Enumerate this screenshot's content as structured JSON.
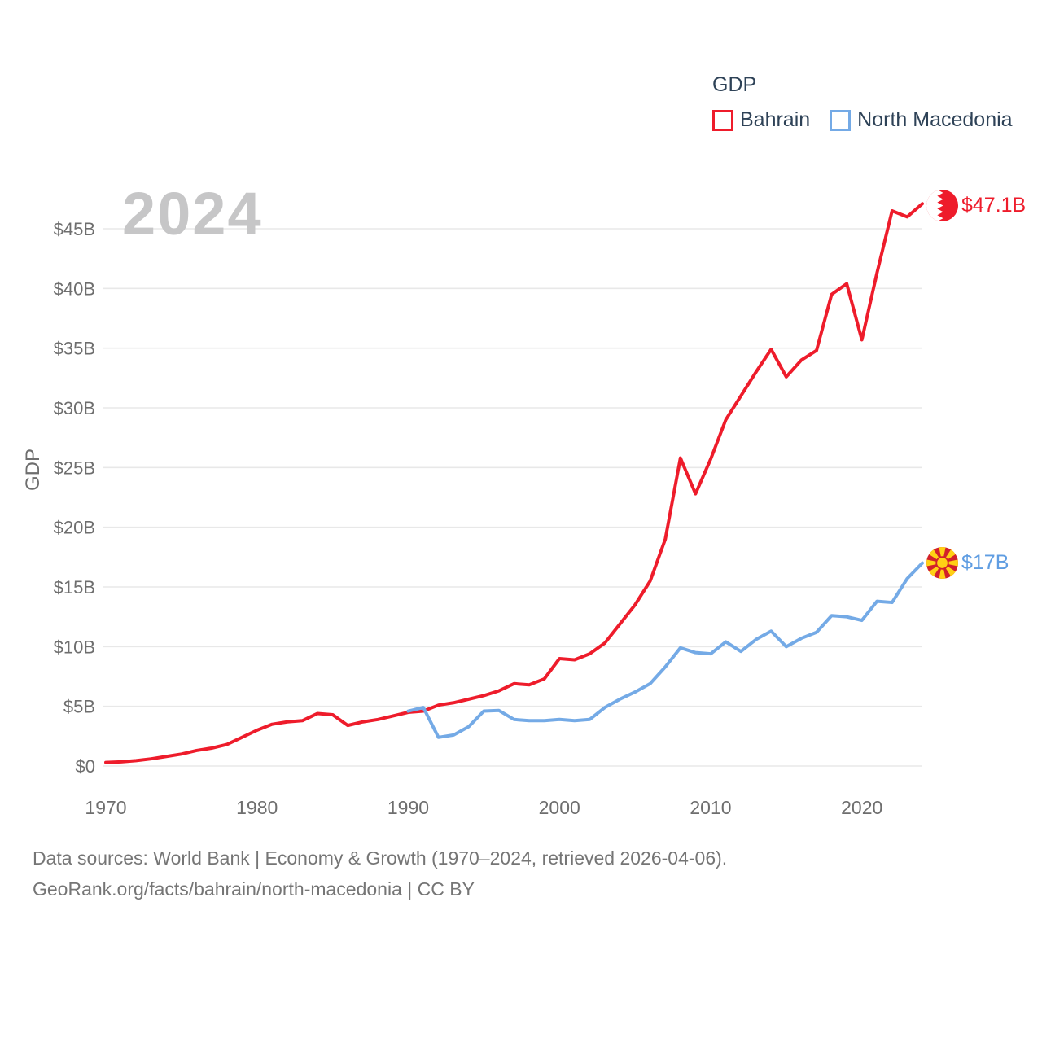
{
  "legend": {
    "title": "GDP",
    "items": [
      {
        "label": "Bahrain",
        "color": "#ee1c2b"
      },
      {
        "label": "North Macedonia",
        "color": "#74aae6"
      }
    ]
  },
  "watermark": "2024",
  "y_axis_title": "GDP",
  "end_labels": [
    {
      "label": "$47.1B",
      "color": "#ee1c2b",
      "flag": "bahrain-flag-icon"
    },
    {
      "label": "$17B",
      "color": "#5f9de2",
      "flag": "north-macedonia-flag-icon"
    }
  ],
  "footer": {
    "line1": "Data sources: World Bank | Economy & Growth (1970–2024, retrieved 2026-04-06).",
    "line2": "GeoRank.org/facts/bahrain/north-macedonia | CC BY"
  },
  "colors": {
    "bahrain": "#ee1c2b",
    "north_macedonia": "#74aae6",
    "grid": "#e8e8e8",
    "axis_text": "#6e6e6e",
    "watermark": "#c6c6c7",
    "legend_text": "#2e4257",
    "footer_text": "#757575"
  },
  "chart_data": {
    "type": "line",
    "title": "GDP",
    "ylabel": "GDP",
    "xlabel": "",
    "grid": "horizontal",
    "legend_position": "top-right",
    "xlim": [
      1970,
      2024
    ],
    "ylim": [
      0,
      48.5
    ],
    "ytick_values": [
      0,
      5,
      10,
      15,
      20,
      25,
      30,
      35,
      40,
      45
    ],
    "ytick_labels": [
      "$0",
      "$5B",
      "$10B",
      "$15B",
      "$20B",
      "$25B",
      "$30B",
      "$35B",
      "$40B",
      "$45B"
    ],
    "xtick_values": [
      1970,
      1980,
      1990,
      2000,
      2010,
      2020
    ],
    "xtick_labels": [
      "1970",
      "1980",
      "1990",
      "2000",
      "2010",
      "2020"
    ],
    "x": [
      1970,
      1971,
      1972,
      1973,
      1974,
      1975,
      1976,
      1977,
      1978,
      1979,
      1980,
      1981,
      1982,
      1983,
      1984,
      1985,
      1986,
      1987,
      1988,
      1989,
      1990,
      1991,
      1992,
      1993,
      1994,
      1995,
      1996,
      1997,
      1998,
      1999,
      2000,
      2001,
      2002,
      2003,
      2004,
      2005,
      2006,
      2007,
      2008,
      2009,
      2010,
      2011,
      2012,
      2013,
      2014,
      2015,
      2016,
      2017,
      2018,
      2019,
      2020,
      2021,
      2022,
      2023,
      2024
    ],
    "series": [
      {
        "name": "Bahrain",
        "color": "#ee1c2b",
        "end_value_label": "$47.1B",
        "values": [
          0.3,
          0.35,
          0.45,
          0.6,
          0.8,
          1.0,
          1.3,
          1.5,
          1.8,
          2.4,
          3.0,
          3.5,
          3.7,
          3.8,
          4.4,
          4.3,
          3.4,
          3.7,
          3.9,
          4.2,
          4.5,
          4.6,
          5.1,
          5.3,
          5.6,
          5.9,
          6.3,
          6.9,
          6.8,
          7.3,
          9.0,
          8.9,
          9.4,
          10.3,
          11.9,
          13.5,
          15.5,
          19.0,
          25.8,
          22.8,
          25.7,
          29.0,
          31.0,
          33.0,
          34.9,
          32.6,
          34.0,
          34.8,
          39.5,
          40.4,
          35.7,
          41.3,
          46.5,
          46.0,
          47.1
        ]
      },
      {
        "name": "North Macedonia",
        "color": "#74aae6",
        "end_value_label": "$17B",
        "values": [
          null,
          null,
          null,
          null,
          null,
          null,
          null,
          null,
          null,
          null,
          null,
          null,
          null,
          null,
          null,
          null,
          null,
          null,
          null,
          null,
          4.6,
          4.9,
          2.4,
          2.6,
          3.3,
          4.6,
          4.65,
          3.9,
          3.8,
          3.8,
          3.9,
          3.8,
          3.9,
          4.9,
          5.6,
          6.2,
          6.9,
          8.3,
          9.9,
          9.5,
          9.4,
          10.4,
          9.6,
          10.6,
          11.3,
          10.0,
          10.7,
          11.2,
          12.6,
          12.5,
          12.2,
          13.8,
          13.7,
          15.7,
          17.0
        ]
      }
    ]
  }
}
